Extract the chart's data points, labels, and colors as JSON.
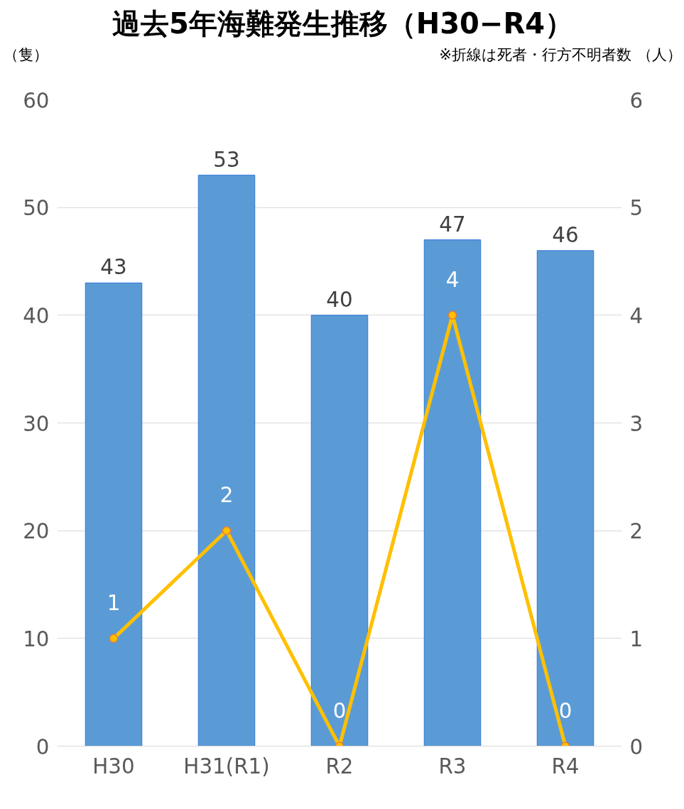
{
  "chart_data": {
    "type": "bar",
    "title": "過去5年海難発生推移（H30−R4）",
    "ylabel": "（隻）",
    "y2label": "（人）",
    "annotations": [
      "※折線は死者・行方不明者数"
    ],
    "categories": [
      "H30",
      "H31(R1)",
      "R2",
      "R3",
      "R4"
    ],
    "series": [
      {
        "color": "#5b9bd5",
        "values": [
          43,
          53,
          40,
          47,
          46
        ]
      },
      {
        "type": "line",
        "axis": "y2",
        "color": "#ffc000",
        "values": [
          1,
          2,
          0,
          4,
          0
        ],
        "marker": "circle"
      }
    ],
    "ylim": [
      0,
      60
    ],
    "yticks": [
      0,
      10,
      20,
      30,
      40,
      50,
      60
    ],
    "y2lim": [
      0,
      6
    ],
    "y2ticks": [
      0,
      1,
      2,
      3,
      4,
      5,
      6
    ],
    "grid": "y",
    "data_labels": true
  }
}
